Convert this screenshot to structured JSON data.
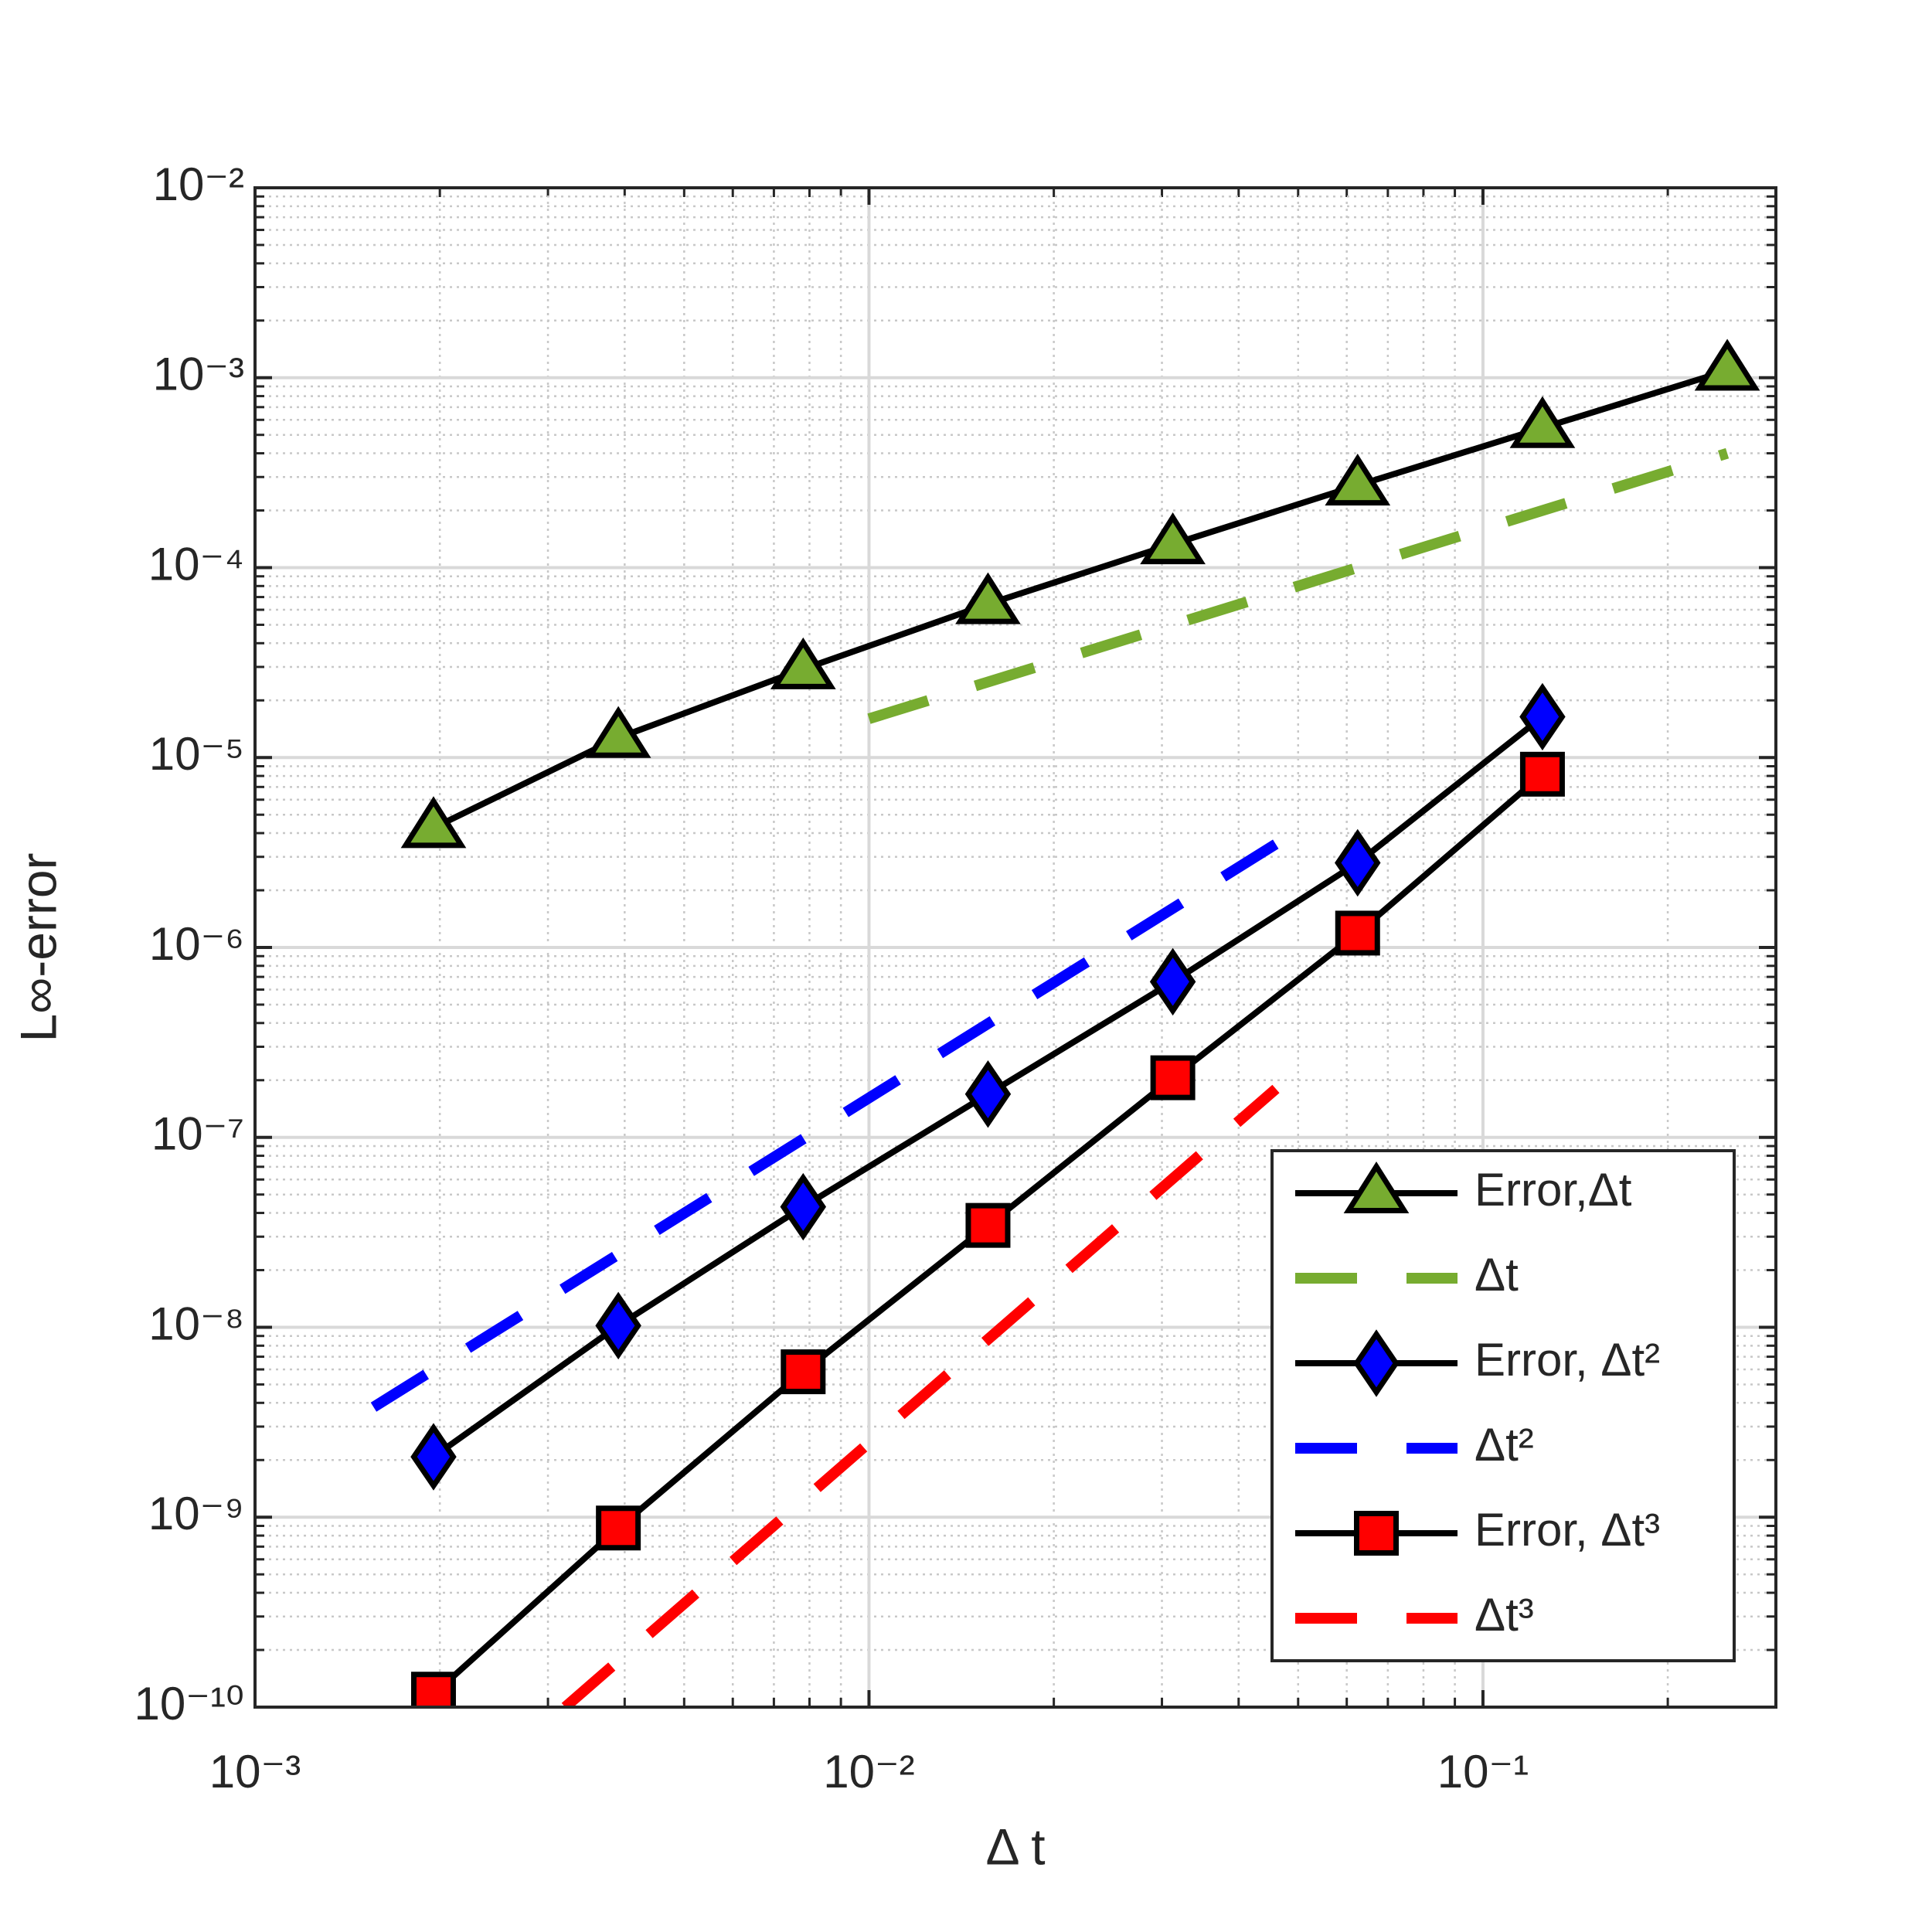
{
  "chart_data": {
    "type": "line",
    "xlabel": "Δ t",
    "ylabel": "L∞-error",
    "xscale": "log",
    "yscale": "log",
    "xlim": [
      0.001,
      0.3
    ],
    "ylim": [
      1e-10,
      0.01
    ],
    "xticks": [
      {
        "value": 0.001,
        "label": "10⁻³"
      },
      {
        "value": 0.01,
        "label": "10⁻²"
      },
      {
        "value": 0.1,
        "label": "10⁻¹"
      }
    ],
    "yticks": [
      {
        "value": 1e-10,
        "label": "10⁻¹⁰"
      },
      {
        "value": 1e-09,
        "label": "10⁻⁹"
      },
      {
        "value": 1e-08,
        "label": "10⁻⁸"
      },
      {
        "value": 1e-07,
        "label": "10⁻⁷"
      },
      {
        "value": 1e-06,
        "label": "10⁻⁶"
      },
      {
        "value": 1e-05,
        "label": "10⁻⁵"
      },
      {
        "value": 0.0001,
        "label": "10⁻⁴"
      },
      {
        "value": 0.001,
        "label": "10⁻³"
      },
      {
        "value": 0.01,
        "label": "10⁻²"
      }
    ],
    "xminorticks": [
      0.002,
      0.003,
      0.004,
      0.005,
      0.006,
      0.007,
      0.008,
      0.009,
      0.02,
      0.03,
      0.04,
      0.05,
      0.06,
      0.07,
      0.08,
      0.09,
      0.2,
      0.3
    ],
    "yminorticks": [
      2e-10,
      3e-10,
      4e-10,
      5e-10,
      6e-10,
      7e-10,
      8e-10,
      9e-10,
      2e-09,
      3e-09,
      4e-09,
      5e-09,
      6e-09,
      7e-09,
      8e-09,
      9e-09,
      2e-08,
      3e-08,
      4e-08,
      5e-08,
      6e-08,
      7e-08,
      8e-08,
      9e-08,
      2e-07,
      3e-07,
      4e-07,
      5e-07,
      6e-07,
      7e-07,
      8e-07,
      9e-07,
      2e-06,
      3e-06,
      4e-06,
      5e-06,
      6e-06,
      7e-06,
      8e-06,
      9e-06,
      2e-05,
      3e-05,
      4e-05,
      5e-05,
      6e-05,
      7e-05,
      8e-05,
      9e-05,
      0.0002,
      0.0003,
      0.0004,
      0.0005,
      0.0006,
      0.0007,
      0.0008,
      0.0009,
      0.002,
      0.003,
      0.004,
      0.005,
      0.006,
      0.007,
      0.008,
      0.009
    ],
    "grid": true,
    "minor_grid": true,
    "legend_location": "southeast",
    "series": [
      {
        "name": "Error,Δt",
        "color": "#000000",
        "linestyle": "solid",
        "marker": "triangle",
        "marker_color": "#77ac30",
        "x": [
          0.001953125,
          0.00390625,
          0.0078125,
          0.015625,
          0.03125,
          0.0625,
          0.125,
          0.25
        ],
        "values": [
          4.26e-06,
          1.27e-05,
          2.92e-05,
          6.43e-05,
          0.000133,
          0.000271,
          0.000544,
          0.00109
        ]
      },
      {
        "name": "Δt",
        "color": "#77ac30",
        "linestyle": "dashed",
        "x": [
          0.01,
          0.25
        ],
        "values": [
          1.6e-05,
          0.0004
        ]
      },
      {
        "name": "Error, Δt²",
        "color": "#000000",
        "linestyle": "solid",
        "marker": "diamond",
        "marker_color": "#0000ff",
        "x": [
          0.001953125,
          0.00390625,
          0.0078125,
          0.015625,
          0.03125,
          0.0625,
          0.125
        ],
        "values": [
          2.08e-09,
          1.02e-08,
          4.31e-08,
          1.69e-07,
          6.6e-07,
          2.79e-06,
          1.64e-05
        ]
      },
      {
        "name": "Δt²",
        "color": "#0000ff",
        "linestyle": "dashed",
        "x": [
          0.00156,
          0.0485
        ],
        "values": [
          3.8e-09,
          3.9e-06
        ]
      },
      {
        "name": "Error, Δt³",
        "color": "#000000",
        "linestyle": "solid",
        "marker": "square",
        "marker_color": "#ff0000",
        "x": [
          0.001953125,
          0.00390625,
          0.0078125,
          0.015625,
          0.03125,
          0.0625,
          0.125
        ],
        "values": [
          1.17e-10,
          8.77e-10,
          5.83e-09,
          3.44e-08,
          2.06e-07,
          1.19e-06,
          8.17e-06
        ]
      },
      {
        "name": "Δt³",
        "color": "#ff0000",
        "linestyle": "dashed",
        "x": [
          0.0032,
          0.046
        ],
        "values": [
          1e-10,
          1.8e-07
        ]
      }
    ]
  }
}
